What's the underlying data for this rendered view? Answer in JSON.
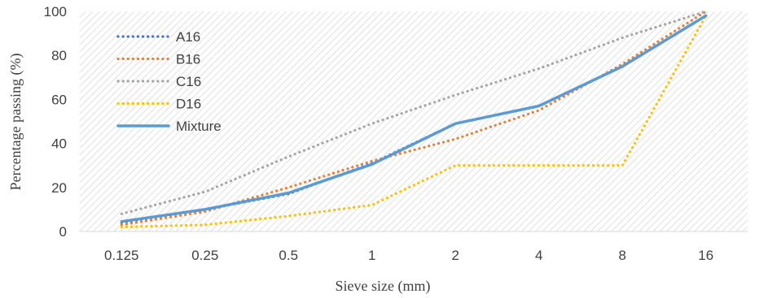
{
  "chart_data": {
    "type": "line",
    "title": "",
    "xlabel": "Sieve size (mm)",
    "ylabel": "Percentage passing (%)",
    "categories": [
      "0.125",
      "0.25",
      "0.5",
      "1",
      "2",
      "4",
      "8",
      "16"
    ],
    "ylim": [
      0,
      100
    ],
    "yticks": [
      0,
      20,
      40,
      60,
      80,
      100
    ],
    "grid": false,
    "legend_position": "top-left",
    "series": [
      {
        "name": "A16",
        "values": [
          4,
          10,
          17,
          31,
          49,
          57,
          75,
          98
        ],
        "color": "#4472C4",
        "style": "dotted"
      },
      {
        "name": "B16",
        "values": [
          3,
          9,
          20,
          32,
          42,
          55,
          76,
          100
        ],
        "color": "#ED7D31",
        "style": "dotted"
      },
      {
        "name": "C16",
        "values": [
          8,
          18,
          34,
          49,
          62,
          74,
          88,
          100
        ],
        "color": "#A5A5A5",
        "style": "dotted"
      },
      {
        "name": "D16",
        "values": [
          2,
          3,
          7,
          12,
          30,
          30,
          30,
          98
        ],
        "color": "#FFC000",
        "style": "dotted"
      },
      {
        "name": "Mixture",
        "values": [
          4.5,
          10,
          17.5,
          30.5,
          49,
          57,
          75,
          98
        ],
        "color": "#5B9BD5",
        "style": "solid"
      }
    ]
  }
}
